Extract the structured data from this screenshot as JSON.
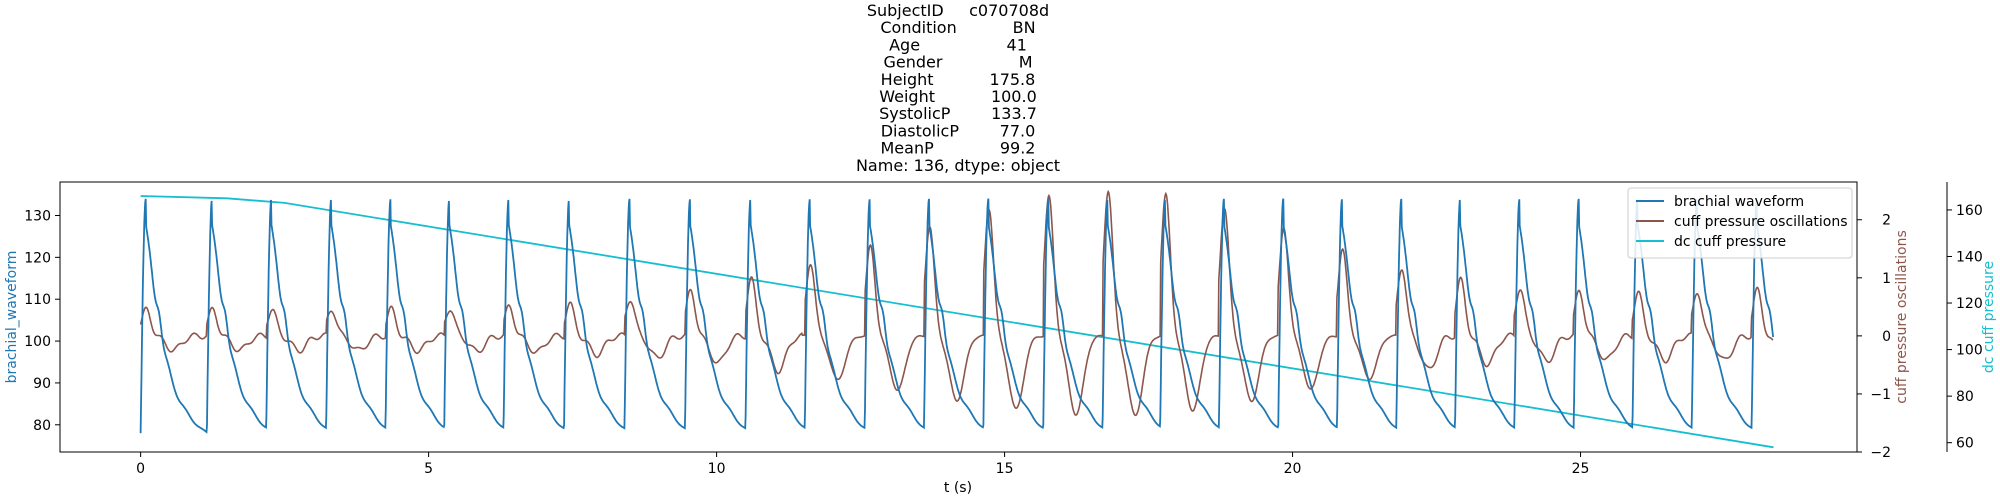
{
  "chart_data": {
    "type": "line",
    "title_lines": [
      "SubjectID     c070708d",
      "Condition           BN",
      "Age                 41",
      "Gender               M",
      "Height           175.8",
      "Weight           100.0",
      "SystolicP        133.7",
      "DiastolicP        77.0",
      "MeanP             99.2",
      "Name: 136, dtype: object"
    ],
    "xlabel": "t (s)",
    "xlim": [
      -1.4,
      29.8
    ],
    "xticks": [
      0,
      5,
      10,
      15,
      20,
      25
    ],
    "y_left": {
      "label": "brachial_waveform",
      "color": "#1f77b4",
      "lim": [
        73.5,
        138
      ],
      "ticks": [
        80,
        90,
        100,
        110,
        120,
        130
      ]
    },
    "y_right1": {
      "label": "cuff pressure oscillations",
      "color": "#8c564b",
      "lim": [
        -2.0,
        2.65
      ],
      "ticks": [
        -2,
        -1,
        0,
        1,
        2
      ]
    },
    "y_right2": {
      "label": "dc cuff pressure",
      "color": "#17becf",
      "lim": [
        56,
        172
      ],
      "ticks": [
        60,
        80,
        100,
        120,
        140,
        160
      ]
    },
    "legend": {
      "position": "top-right",
      "entries": [
        {
          "label": "brachial waveform",
          "color": "#1f77b4"
        },
        {
          "label": "cuff pressure oscillations",
          "color": "#8c564b"
        },
        {
          "label": "dc cuff pressure",
          "color": "#17becf"
        }
      ]
    },
    "series": [
      {
        "name": "brachial waveform",
        "color": "#1f77b4",
        "beat_times": [
          0.0,
          1.15,
          2.18,
          3.22,
          4.25,
          5.27,
          6.3,
          7.35,
          8.4,
          9.45,
          10.5,
          11.53,
          12.57,
          13.6,
          14.63,
          15.67,
          16.7,
          17.7,
          18.72,
          19.75,
          20.77,
          21.8,
          22.82,
          23.85,
          24.88,
          25.9,
          26.93,
          27.97
        ],
        "systolic_peak": 134,
        "diastolic_min": 78,
        "t_end": 28.35
      },
      {
        "name": "cuff pressure oscillations",
        "color": "#8c564b",
        "envelope_peak_time": 17.0,
        "envelope_peak_amplitude": 2.5,
        "t_start": 0.0,
        "t_end": 28.35
      },
      {
        "name": "dc cuff pressure",
        "color": "#17becf",
        "x": [
          0.0,
          1.5,
          2.5,
          28.35
        ],
        "y": [
          166,
          165,
          163,
          58
        ]
      }
    ]
  }
}
